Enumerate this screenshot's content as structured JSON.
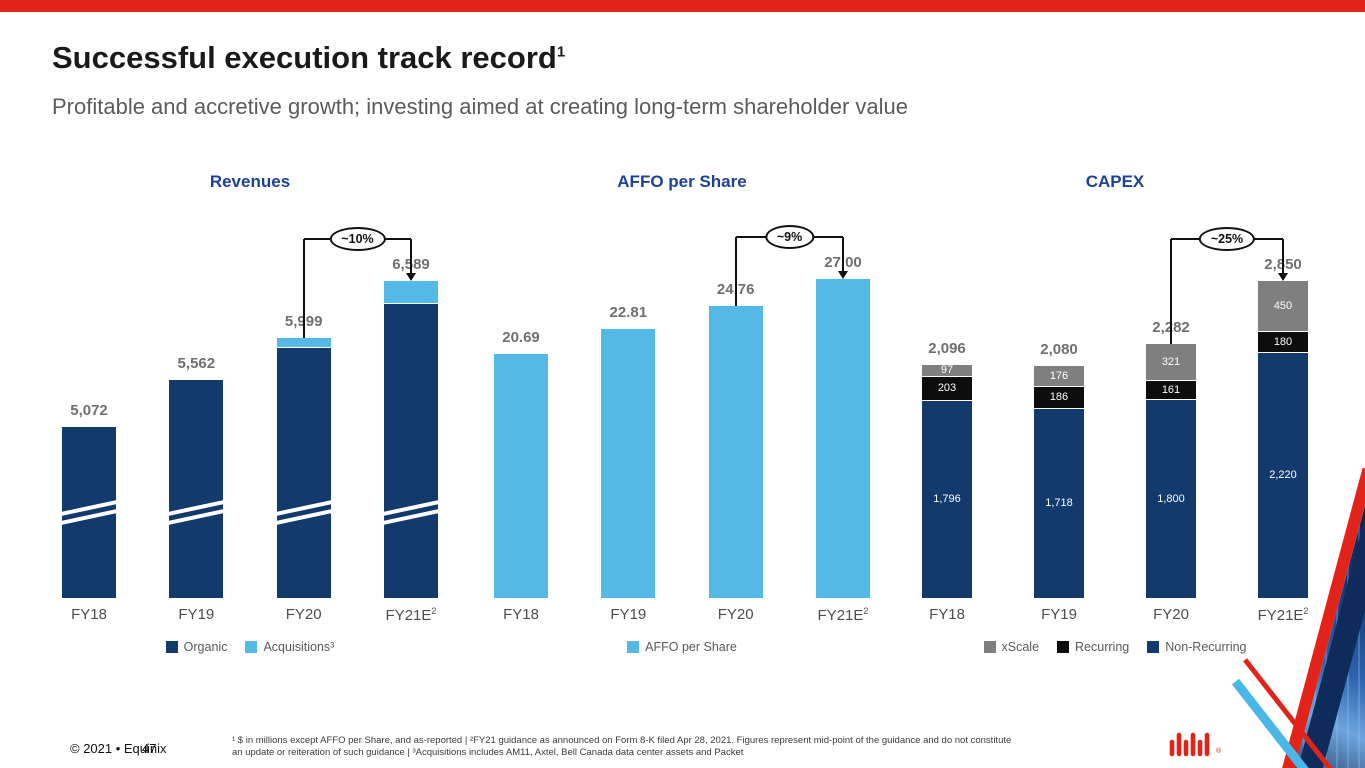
{
  "slide": {
    "title": "Successful execution track record",
    "title_sup": "1",
    "subtitle": "Profitable and accretive growth; investing aimed at creating long-term shareholder value",
    "footer_left": "© 2021 • Equinix",
    "page_number": "47",
    "footnote_line1": "¹ $ in millions except AFFO per Share, and as-reported | ²FY21 guidance as announced on Form 8-K filed Apr 28, 2021. Figures represent mid-point of the guidance and do not constitute",
    "footnote_line2": "an update or reiteration of such guidance | ³Acquisitions includes AM11, Axtel, Bell Canada data center assets and Packet"
  },
  "colors": {
    "brand_red": "#E2231A",
    "navy": "#123A6C",
    "light_blue": "#55B9E6",
    "gray_seg": "#7F7F7F",
    "black_seg": "#0D0D0D",
    "title_blue": "#1B4297",
    "label_gray": "#6F6F6F"
  },
  "chart_data": [
    {
      "type": "bar",
      "stacked": true,
      "title": "Revenues",
      "axis_break": true,
      "categories": [
        "FY18",
        "FY19",
        "FY20",
        "FY21E"
      ],
      "category_sups": [
        "",
        "",
        "",
        "2"
      ],
      "totals": [
        5072,
        5562,
        5999,
        6589
      ],
      "total_labels": [
        "5,072",
        "5,562",
        "5,999",
        "6,589"
      ],
      "series": [
        {
          "name": "Organic",
          "color": "navy",
          "values": [
            5072,
            5562,
            5909,
            6359
          ]
        },
        {
          "name": "Acquisitions³",
          "color": "light_blue",
          "values": [
            0,
            0,
            90,
            230
          ],
          "estimated": true
        }
      ],
      "growth": {
        "label": "~10%",
        "from": 2,
        "to": 3
      },
      "legend": [
        {
          "label": "Organic",
          "color": "navy"
        },
        {
          "label": "Acquisitions³",
          "color": "light_blue"
        }
      ]
    },
    {
      "type": "bar",
      "stacked": false,
      "title": "AFFO per Share",
      "axis_break": false,
      "categories": [
        "FY18",
        "FY19",
        "FY20",
        "FY21E"
      ],
      "category_sups": [
        "",
        "",
        "",
        "2"
      ],
      "totals": [
        20.69,
        22.81,
        24.76,
        27.0
      ],
      "total_labels": [
        "20.69",
        "22.81",
        "24.76",
        "27.00"
      ],
      "series": [
        {
          "name": "AFFO per Share",
          "color": "light_blue",
          "values": [
            20.69,
            22.81,
            24.76,
            27.0
          ]
        }
      ],
      "growth": {
        "label": "~9%",
        "from": 2,
        "to": 3
      },
      "legend": [
        {
          "label": "AFFO per Share",
          "color": "light_blue"
        }
      ]
    },
    {
      "type": "bar",
      "stacked": true,
      "title": "CAPEX",
      "axis_break": false,
      "categories": [
        "FY18",
        "FY19",
        "FY20",
        "FY21E"
      ],
      "category_sups": [
        "",
        "",
        "",
        "2"
      ],
      "totals": [
        2096,
        2080,
        2282,
        2850
      ],
      "total_labels": [
        "2,096",
        "2,080",
        "2,282",
        "2,850"
      ],
      "series": [
        {
          "name": "Non-Recurring",
          "color": "navy",
          "values": [
            1796,
            1718,
            1800,
            2220
          ],
          "labels": [
            "1,796",
            "1,718",
            "1,800",
            "2,220"
          ]
        },
        {
          "name": "Recurring",
          "color": "black_seg",
          "values": [
            203,
            186,
            161,
            180
          ],
          "labels": [
            "203",
            "186",
            "161",
            "180"
          ]
        },
        {
          "name": "xScale",
          "color": "gray_seg",
          "values": [
            97,
            176,
            321,
            450
          ],
          "labels": [
            "97",
            "176",
            "321",
            "450"
          ]
        }
      ],
      "growth": {
        "label": "~25%",
        "from": 2,
        "to": 3
      },
      "legend": [
        {
          "label": "xScale",
          "color": "gray_seg"
        },
        {
          "label": "Recurring",
          "color": "black_seg"
        },
        {
          "label": "Non-Recurring",
          "color": "navy"
        }
      ]
    }
  ]
}
